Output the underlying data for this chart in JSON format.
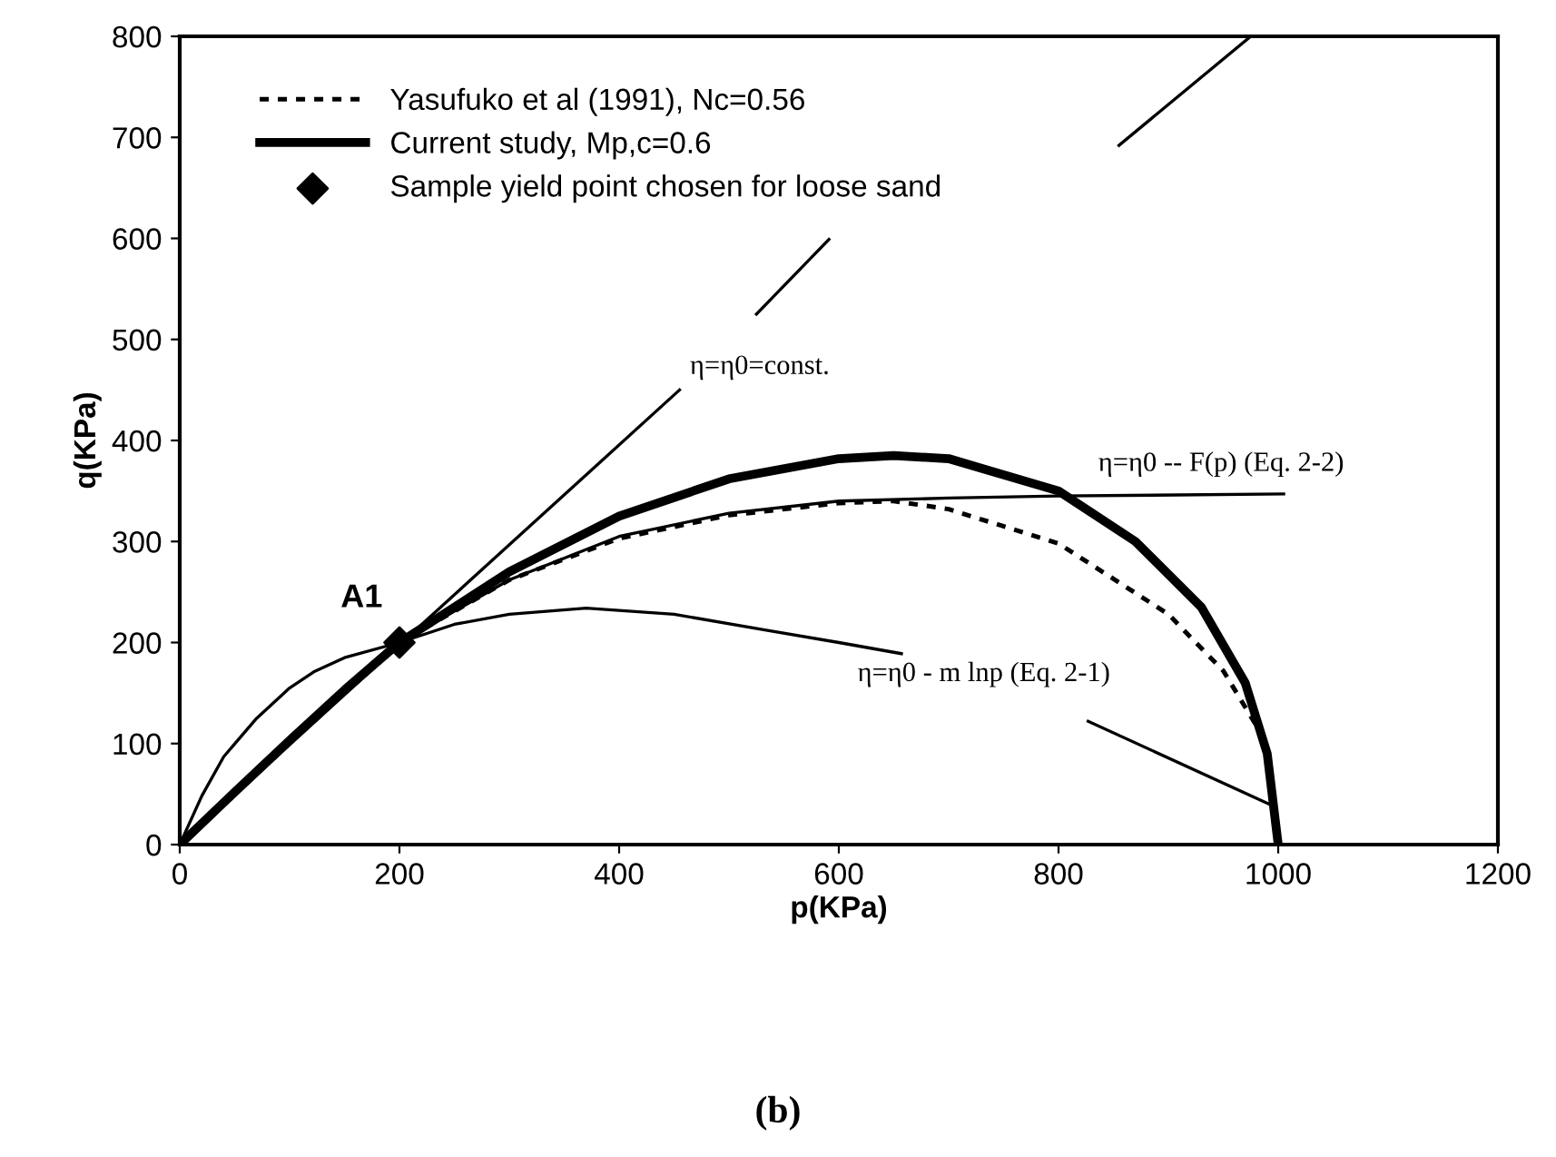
{
  "chart_data": {
    "type": "line",
    "xlabel": "p(KPa)",
    "ylabel": "q(KPa)",
    "xlim": [
      0,
      1200
    ],
    "xticks": [
      0,
      200,
      400,
      600,
      800,
      1000,
      1200
    ],
    "ylim": [
      0,
      800
    ],
    "yticks": [
      0,
      100,
      200,
      300,
      400,
      500,
      600,
      700,
      800
    ],
    "grid": false,
    "legend": "top left",
    "series": [
      {
        "name": "Yasufuko et al (1991), Nc=0.56",
        "color": "#000000",
        "line_style": "dotted",
        "x": [
          0,
          100,
          200,
          300,
          400,
          500,
          600,
          650,
          700,
          800,
          900,
          950,
          990,
          1000
        ],
        "values": [
          0,
          100,
          200,
          262,
          303,
          326,
          338,
          340,
          332,
          298,
          228,
          172,
          100,
          0
        ]
      },
      {
        "name": "Current study, Mp,c=0.6",
        "color": "#000000",
        "line_style": "solid",
        "x": [
          0,
          50,
          100,
          150,
          200,
          300,
          400,
          500,
          600,
          650,
          700,
          800,
          870,
          930,
          970,
          990,
          1000
        ],
        "values": [
          0,
          52,
          103,
          153,
          200,
          270,
          325,
          362,
          382,
          385,
          382,
          350,
          300,
          235,
          160,
          90,
          0
        ]
      },
      {
        "color": "#000000",
        "line_style": "solid",
        "x": [
          0,
          455,
          490,
          525,
          591,
          720,
          855,
          975
        ],
        "values": [
          0,
          450,
          null,
          525,
          599,
          null,
          692,
          800
        ]
      },
      {
        "color": "#000000",
        "line_style": "solid",
        "x": [
          0,
          20,
          40,
          70,
          100,
          122,
          150,
          200,
          250,
          300,
          370,
          450,
          535,
          600,
          657,
          740,
          827,
          992
        ],
        "values": [
          0,
          48,
          87,
          125,
          155,
          171,
          185,
          200,
          218,
          228,
          234,
          228,
          212,
          200,
          189,
          null,
          122,
          40
        ]
      },
      {
        "color": "#000000",
        "line_style": "solid",
        "x": [
          200,
          300,
          400,
          500,
          600,
          700,
          800,
          1005
        ],
        "values": [
          200,
          262,
          305,
          328,
          340,
          343,
          345,
          347
        ]
      },
      {
        "name": "Sample yield point chosen for loose sand",
        "type": "scatter",
        "marker": "diamond",
        "color": "#000000",
        "x": [
          200
        ],
        "values": [
          200
        ]
      }
    ],
    "annotations": [
      {
        "text": "A1",
        "x": 200,
        "y": 200
      },
      "η=η0=const.",
      "η=η0 -- F(p) (Eq. 2-2)",
      "η=η0 - m lnp (Eq. 2-1)",
      "(b)"
    ]
  }
}
